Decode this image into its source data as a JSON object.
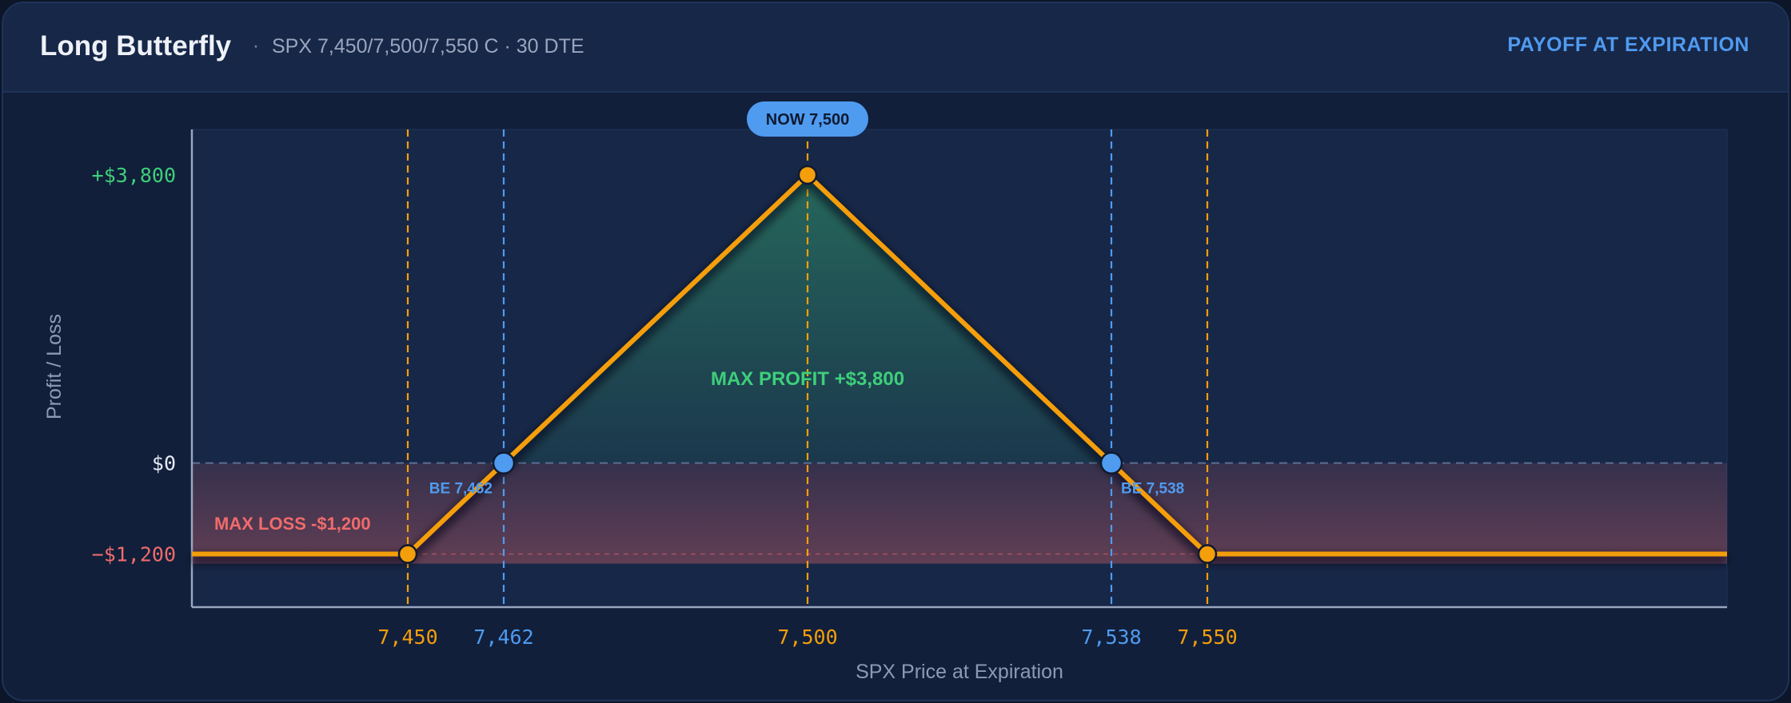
{
  "header": {
    "title": "Long Butterfly",
    "separator": "·",
    "subtitle": "SPX 7,450/7,500/7,550 C · 30 DTE",
    "mode": "PAYOFF AT EXPIRATION"
  },
  "colors": {
    "payoff_line": "#f59e0b",
    "breakeven": "#4f9bf0",
    "profit": "#3ecf7a",
    "loss": "#f06b6b",
    "strike": "#f59e0b"
  },
  "chart_data": {
    "type": "line",
    "title": "",
    "xlabel": "SPX Price at Expiration",
    "ylabel": "Profit / Loss",
    "xlim": [
      7423,
      7615
    ],
    "ylim": [
      -1900,
      4400
    ],
    "grid": false,
    "series": [
      {
        "x": [
          7423,
          7450,
          7462,
          7500,
          7538,
          7550,
          7615
        ],
        "y": [
          -1200,
          -1200,
          0,
          3800,
          0,
          -1200,
          -1200
        ]
      }
    ],
    "x_ticks": [
      {
        "value": 7450,
        "label": "7,450",
        "kind": "strike"
      },
      {
        "value": 7462,
        "label": "7,462",
        "kind": "breakeven"
      },
      {
        "value": 7500,
        "label": "7,500",
        "kind": "strike"
      },
      {
        "value": 7538,
        "label": "7,538",
        "kind": "breakeven"
      },
      {
        "value": 7550,
        "label": "7,550",
        "kind": "strike"
      }
    ],
    "y_ticks": [
      {
        "value": 3800,
        "label": "+$3,800",
        "kind": "profit"
      },
      {
        "value": 0,
        "label": "$0",
        "kind": "zero"
      },
      {
        "value": -1200,
        "label": "−$1,200",
        "kind": "loss"
      }
    ],
    "breakevens": [
      {
        "value": 7462,
        "label": "BE 7,462"
      },
      {
        "value": 7538,
        "label": "BE 7,538"
      }
    ],
    "current_price": {
      "value": 7500,
      "label": "NOW 7,500"
    },
    "annotations": {
      "max_profit": "MAX PROFIT  +$3,800",
      "max_loss": "MAX LOSS  -$1,200"
    }
  }
}
